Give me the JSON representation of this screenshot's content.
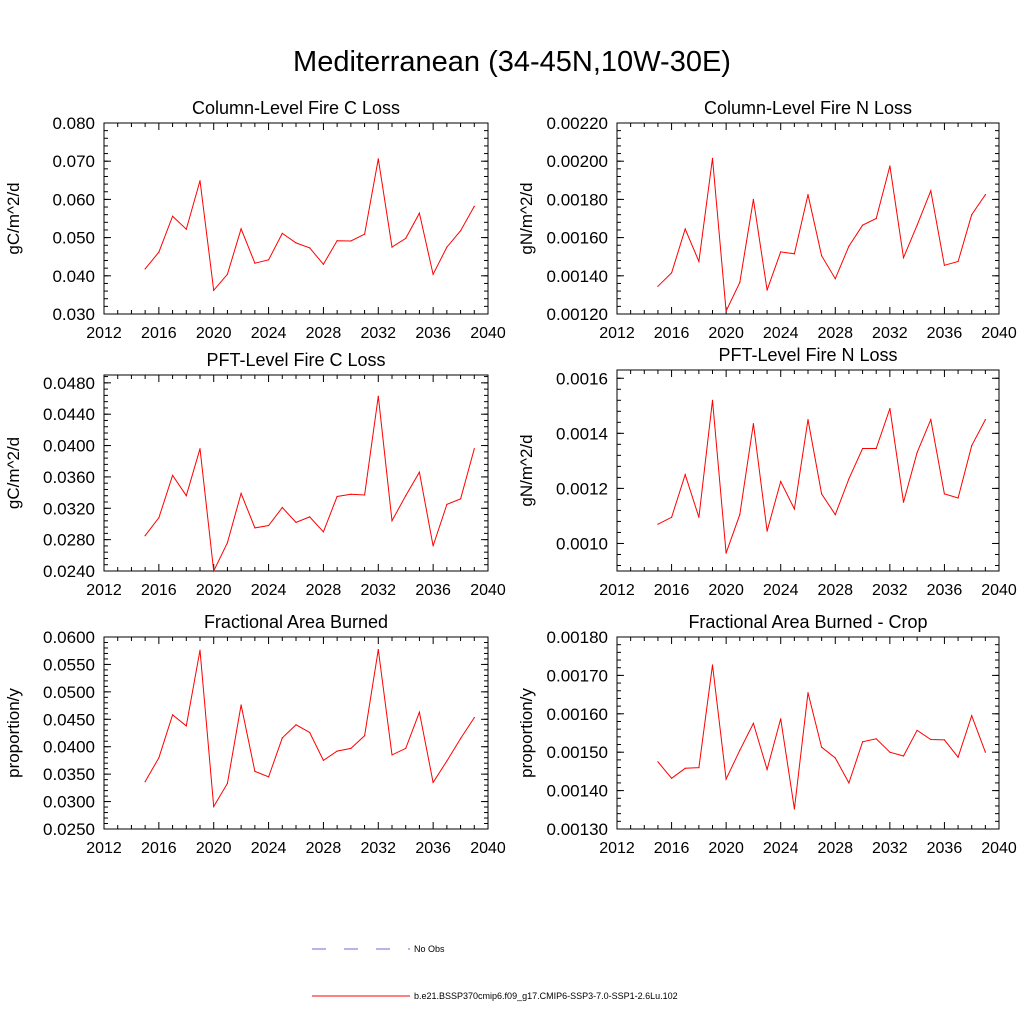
{
  "title": "Mediterranean (34-45N,10W-30E)",
  "colors": {
    "series": "#ff0000",
    "obs": "#6b6bd6",
    "axis": "#000000"
  },
  "legend": {
    "obs_label": "No Obs",
    "series_label": "b.e21.BSSP370cmip6.f09_g17.CMIP6-SSP3-7.0-SSP1-2.6Lu.102"
  },
  "chart_data": [
    {
      "type": "line",
      "title": "Column-Level Fire C Loss",
      "ylabel": "gC/m^2/d",
      "xlim": [
        2012,
        2040
      ],
      "ylim": [
        0.03,
        0.08
      ],
      "xticks": [
        "2012",
        "2016",
        "2020",
        "2024",
        "2028",
        "2032",
        "2036",
        "2040"
      ],
      "yticks": [
        "0.030",
        "0.040",
        "0.050",
        "0.060",
        "0.070",
        "0.080"
      ],
      "x": [
        2015,
        2016,
        2017,
        2018,
        2019,
        2020,
        2021,
        2022,
        2023,
        2024,
        2025,
        2026,
        2027,
        2028,
        2029,
        2030,
        2031,
        2032,
        2033,
        2034,
        2035,
        2036,
        2037,
        2038,
        2039
      ],
      "series": [
        {
          "values": [
            0.0418,
            0.0462,
            0.0556,
            0.0522,
            0.0649,
            0.0362,
            0.0404,
            0.0523,
            0.0433,
            0.0442,
            0.0511,
            0.0486,
            0.0473,
            0.043,
            0.0492,
            0.0491,
            0.0509,
            0.0706,
            0.0475,
            0.0498,
            0.0564,
            0.0404,
            0.0475,
            0.0518,
            0.0582
          ]
        }
      ]
    },
    {
      "type": "line",
      "title": "Column-Level Fire N Loss",
      "ylabel": "gN/m^2/d",
      "xlim": [
        2012,
        2040
      ],
      "ylim": [
        0.0012,
        0.0022
      ],
      "xticks": [
        "2012",
        "2016",
        "2020",
        "2024",
        "2028",
        "2032",
        "2036",
        "2040"
      ],
      "yticks": [
        "0.00120",
        "0.00140",
        "0.00160",
        "0.00180",
        "0.00200",
        "0.00220"
      ],
      "x": [
        2015,
        2016,
        2017,
        2018,
        2019,
        2020,
        2021,
        2022,
        2023,
        2024,
        2025,
        2026,
        2027,
        2028,
        2029,
        2030,
        2031,
        2032,
        2033,
        2034,
        2035,
        2036,
        2037,
        2038,
        2039
      ],
      "series": [
        {
          "values": [
            0.001345,
            0.001415,
            0.001645,
            0.001475,
            0.002015,
            0.001215,
            0.001365,
            0.0018,
            0.001325,
            0.001525,
            0.001515,
            0.001825,
            0.001505,
            0.001385,
            0.001555,
            0.001665,
            0.0017,
            0.001975,
            0.001495,
            0.001665,
            0.001845,
            0.001455,
            0.001475,
            0.00172,
            0.001825
          ]
        }
      ]
    },
    {
      "type": "line",
      "title": "PFT-Level Fire C Loss",
      "ylabel": "gC/m^2/d",
      "xlim": [
        2012,
        2040
      ],
      "ylim": [
        0.024,
        0.049
      ],
      "xticks": [
        "2012",
        "2016",
        "2020",
        "2024",
        "2028",
        "2032",
        "2036",
        "2040"
      ],
      "yticks": [
        "0.0240",
        "0.0280",
        "0.0320",
        "0.0360",
        "0.0400",
        "0.0440",
        "0.0480"
      ],
      "x": [
        2015,
        2016,
        2017,
        2018,
        2019,
        2020,
        2021,
        2022,
        2023,
        2024,
        2025,
        2026,
        2027,
        2028,
        2029,
        2030,
        2031,
        2032,
        2033,
        2034,
        2035,
        2036,
        2037,
        2038,
        2039
      ],
      "series": [
        {
          "values": [
            0.0285,
            0.0308,
            0.0362,
            0.0336,
            0.0396,
            0.024,
            0.0276,
            0.0339,
            0.0295,
            0.0298,
            0.0321,
            0.0302,
            0.0309,
            0.029,
            0.0335,
            0.0338,
            0.0337,
            0.0463,
            0.0304,
            0.0336,
            0.0366,
            0.0272,
            0.0325,
            0.0332,
            0.0396
          ]
        }
      ]
    },
    {
      "type": "line",
      "title": "PFT-Level Fire N Loss",
      "ylabel": "gN/m^2/d",
      "xlim": [
        2012,
        2040
      ],
      "ylim": [
        0.0009,
        0.00163
      ],
      "xticks": [
        "2012",
        "2016",
        "2020",
        "2024",
        "2028",
        "2032",
        "2036",
        "2040"
      ],
      "yticks": [
        "0.0010",
        "0.0012",
        "0.0014",
        "0.0016"
      ],
      "x": [
        2015,
        2016,
        2017,
        2018,
        2019,
        2020,
        2021,
        2022,
        2023,
        2024,
        2025,
        2026,
        2027,
        2028,
        2029,
        2030,
        2031,
        2032,
        2033,
        2034,
        2035,
        2036,
        2037,
        2038,
        2039
      ],
      "series": [
        {
          "values": [
            0.00107,
            0.001095,
            0.00125,
            0.001095,
            0.00152,
            0.000965,
            0.001105,
            0.001435,
            0.001045,
            0.001225,
            0.001125,
            0.00145,
            0.00118,
            0.001105,
            0.001235,
            0.001345,
            0.001345,
            0.00149,
            0.00115,
            0.00133,
            0.00145,
            0.00118,
            0.001165,
            0.001355,
            0.00145
          ]
        }
      ]
    },
    {
      "type": "line",
      "title": "Fractional Area Burned",
      "ylabel": "proportion/y",
      "xlim": [
        2012,
        2040
      ],
      "ylim": [
        0.025,
        0.06
      ],
      "xticks": [
        "2012",
        "2016",
        "2020",
        "2024",
        "2028",
        "2032",
        "2036",
        "2040"
      ],
      "yticks": [
        "0.0250",
        "0.0300",
        "0.0350",
        "0.0400",
        "0.0450",
        "0.0500",
        "0.0550",
        "0.0600"
      ],
      "x": [
        2015,
        2016,
        2017,
        2018,
        2019,
        2020,
        2021,
        2022,
        2023,
        2024,
        2025,
        2026,
        2027,
        2028,
        2029,
        2030,
        2031,
        2032,
        2033,
        2034,
        2035,
        2036,
        2037,
        2038,
        2039
      ],
      "series": [
        {
          "values": [
            0.0336,
            0.038,
            0.0458,
            0.0438,
            0.0576,
            0.0291,
            0.0333,
            0.0476,
            0.0355,
            0.0345,
            0.0416,
            0.044,
            0.0426,
            0.0375,
            0.0392,
            0.0397,
            0.042,
            0.0577,
            0.0385,
            0.0397,
            0.0463,
            0.0335,
            0.0374,
            0.0415,
            0.0453
          ]
        }
      ]
    },
    {
      "type": "line",
      "title": "Fractional Area Burned - Crop",
      "ylabel": "proportion/y",
      "xlim": [
        2012,
        2040
      ],
      "ylim": [
        0.0013,
        0.0018
      ],
      "xticks": [
        "2012",
        "2016",
        "2020",
        "2024",
        "2028",
        "2032",
        "2036",
        "2040"
      ],
      "yticks": [
        "0.00130",
        "0.00140",
        "0.00150",
        "0.00160",
        "0.00170",
        "0.00180"
      ],
      "x": [
        2015,
        2016,
        2017,
        2018,
        2019,
        2020,
        2021,
        2022,
        2023,
        2024,
        2025,
        2026,
        2027,
        2028,
        2029,
        2030,
        2031,
        2032,
        2033,
        2034,
        2035,
        2036,
        2037,
        2038,
        2039
      ],
      "series": [
        {
          "values": [
            0.001475,
            0.001432,
            0.001458,
            0.00146,
            0.001727,
            0.00143,
            0.001505,
            0.001575,
            0.001455,
            0.001587,
            0.001352,
            0.001655,
            0.001513,
            0.001485,
            0.00142,
            0.001527,
            0.001535,
            0.0015,
            0.00149,
            0.001557,
            0.001533,
            0.001532,
            0.001487,
            0.001595,
            0.0015
          ]
        }
      ]
    }
  ]
}
